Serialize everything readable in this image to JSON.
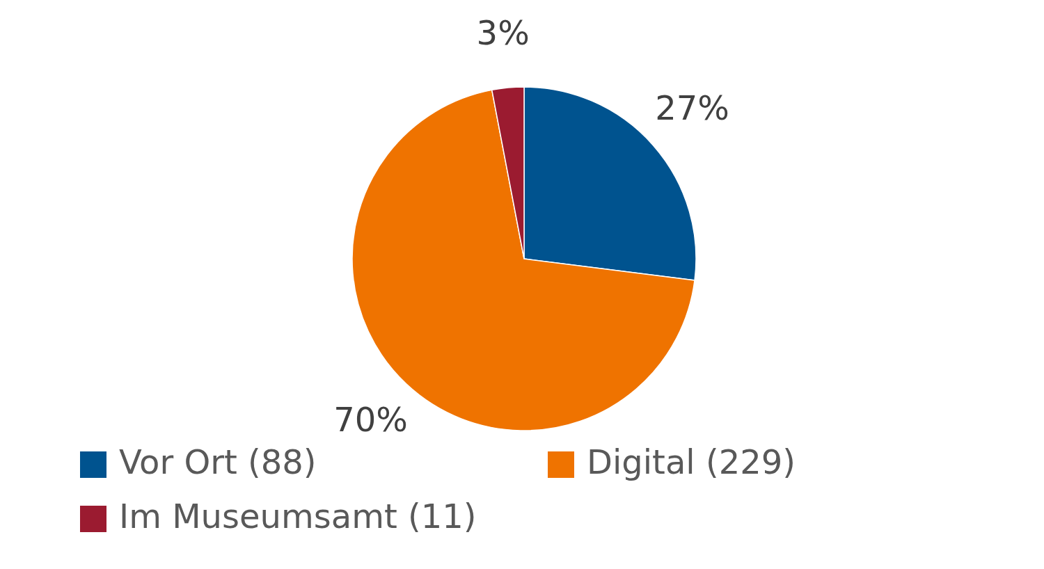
{
  "chart_data": {
    "type": "pie",
    "categories": [
      "Vor Ort (88)",
      "Digital (229)",
      "Im Museumsamt (11)"
    ],
    "values": [
      27,
      70,
      3
    ],
    "colors": [
      "#00538f",
      "#ef7300",
      "#9b1b30"
    ],
    "value_labels": [
      "27%",
      "70%",
      "3%"
    ],
    "legend": "bottom"
  }
}
